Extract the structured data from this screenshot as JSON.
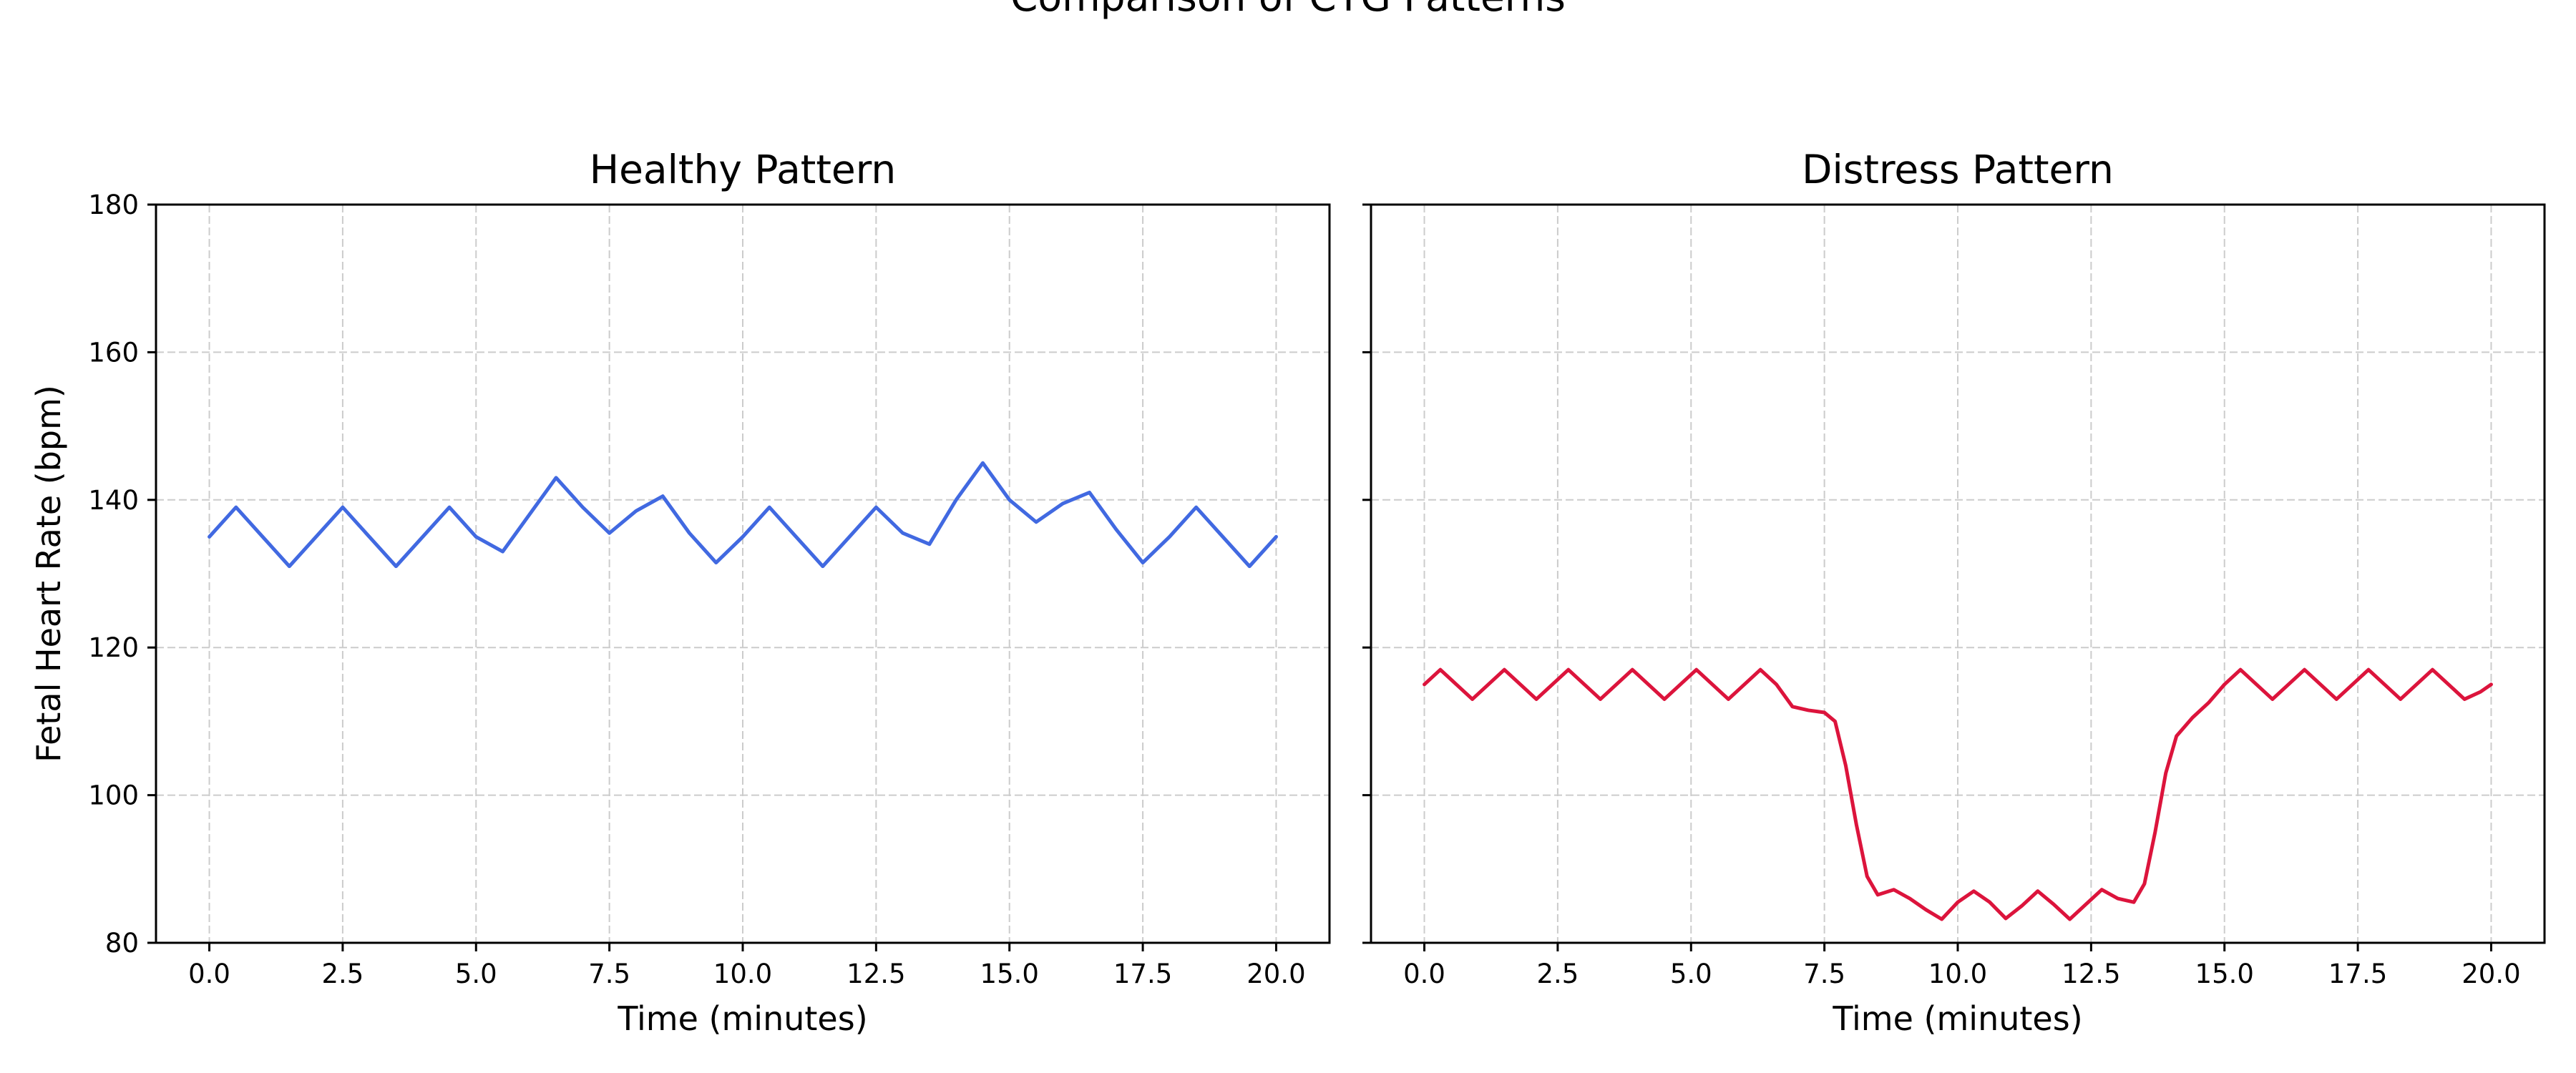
{
  "figure": {
    "suptitle": "Comparison of CTG Patterns"
  },
  "chart_data": [
    {
      "type": "line",
      "title": "Healthy Pattern",
      "xlabel": "Time (minutes)",
      "ylabel": "Fetal Heart Rate (bpm)",
      "xlim": [
        -1.0,
        21.0
      ],
      "ylim": [
        80,
        180
      ],
      "xticks": [
        "0.0",
        "2.5",
        "5.0",
        "7.5",
        "10.0",
        "12.5",
        "15.0",
        "17.5",
        "20.0"
      ],
      "yticks": [
        "80",
        "100",
        "120",
        "140",
        "160",
        "180"
      ],
      "grid": true,
      "color": "#4169e1",
      "series": [
        {
          "x": [
            0.0,
            0.5,
            1.0,
            1.5,
            2.0,
            2.5,
            3.0,
            3.5,
            4.0,
            4.5,
            5.0,
            5.5,
            6.0,
            6.5,
            7.0,
            7.5,
            8.0,
            8.5,
            9.0,
            9.5,
            10.0,
            10.5,
            11.0,
            11.5,
            12.0,
            12.5,
            13.0,
            13.5,
            14.0,
            14.5,
            15.0,
            15.5,
            16.0,
            16.5,
            17.0,
            17.5,
            18.0,
            18.5,
            19.0,
            19.5,
            20.0
          ],
          "y": [
            135,
            139,
            135,
            131,
            135,
            139,
            135,
            131,
            135,
            139,
            135,
            133,
            138,
            143,
            139,
            135.5,
            138.5,
            140.5,
            135.5,
            131.5,
            135,
            139,
            135,
            131,
            135,
            139,
            135.5,
            134,
            140,
            145,
            140,
            137,
            139.5,
            141,
            136,
            131.5,
            135,
            139,
            135,
            131,
            135
          ]
        }
      ]
    },
    {
      "type": "line",
      "title": "Distress Pattern",
      "xlabel": "Time (minutes)",
      "ylabel": "",
      "xlim": [
        -1.0,
        21.0
      ],
      "ylim": [
        80,
        180
      ],
      "xticks": [
        "0.0",
        "2.5",
        "5.0",
        "7.5",
        "10.0",
        "12.5",
        "15.0",
        "17.5",
        "20.0"
      ],
      "yticks": [
        "80",
        "100",
        "120",
        "140",
        "160",
        "180"
      ],
      "grid": true,
      "color": "#dc143c",
      "series": [
        {
          "x": [
            0.0,
            0.3,
            0.6,
            0.9,
            1.2,
            1.5,
            1.8,
            2.1,
            2.4,
            2.7,
            3.0,
            3.3,
            3.6,
            3.9,
            4.2,
            4.5,
            4.8,
            5.1,
            5.4,
            5.7,
            6.0,
            6.3,
            6.6,
            6.9,
            7.2,
            7.5,
            7.7,
            7.9,
            8.1,
            8.3,
            8.5,
            8.8,
            9.1,
            9.4,
            9.7,
            10.0,
            10.3,
            10.6,
            10.9,
            11.2,
            11.5,
            11.8,
            12.1,
            12.4,
            12.7,
            13.0,
            13.3,
            13.5,
            13.7,
            13.9,
            14.1,
            14.4,
            14.7,
            15.0,
            15.3,
            15.6,
            15.9,
            16.2,
            16.5,
            16.8,
            17.1,
            17.4,
            17.7,
            18.0,
            18.3,
            18.6,
            18.9,
            19.2,
            19.5,
            19.8,
            20.0
          ],
          "y": [
            115,
            117,
            115,
            113,
            115,
            117,
            115,
            113,
            115,
            117,
            115,
            113,
            115,
            117,
            115,
            113,
            115,
            117,
            115,
            113,
            115,
            117,
            115,
            112,
            111.5,
            111.2,
            110,
            104,
            96,
            89,
            86.5,
            87.2,
            86,
            84.5,
            83.2,
            85.5,
            87,
            85.5,
            83.3,
            85,
            87,
            85.2,
            83.2,
            85.2,
            87.2,
            86,
            85.5,
            88,
            95,
            103,
            108,
            110.5,
            112.5,
            115,
            117,
            115,
            113,
            115,
            117,
            115,
            113,
            115,
            117,
            115,
            113,
            115,
            117,
            115,
            113,
            114,
            115
          ]
        }
      ]
    }
  ]
}
